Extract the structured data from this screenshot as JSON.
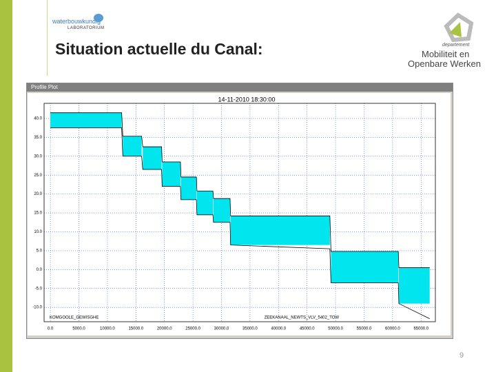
{
  "header": {
    "logo_top": "waterbouwkundig",
    "logo_bottom": "LABORATORIUM",
    "title": "Situation actuelle du Canal:",
    "dept_small": "departement",
    "dept_line1": "Mobiliteit en",
    "dept_line2": "Openbare Werken"
  },
  "window": {
    "title": "Profile Plot"
  },
  "chart_data": {
    "type": "line",
    "title": "14-11-2010 18:30:00",
    "annotations": [
      "KOMGOOLE_GEWISGHE",
      "ZEEKANAAL_NEWTS_VLV_5402_TOW"
    ],
    "x": [
      0,
      12500,
      12700,
      16000,
      16200,
      19500,
      19600,
      22800,
      22900,
      25600,
      25700,
      28500,
      28600,
      31500,
      31600,
      49000,
      49200,
      61000,
      61100,
      66500
    ],
    "series": [
      {
        "color": "#000000",
        "values": [
          41.5,
          41.5,
          35.3,
          35.3,
          32.5,
          32.5,
          28.5,
          28.5,
          24.5,
          24.5,
          20.8,
          20.8,
          18.8,
          18.8,
          14.2,
          14.2,
          4.8,
          4.8,
          0.5,
          0.5
        ]
      },
      {
        "color": "#000000",
        "values": [
          37.5,
          37.5,
          30,
          30,
          26.5,
          26.5,
          22,
          22,
          18.5,
          18.5,
          14.5,
          14.5,
          12.5,
          12.5,
          6.5,
          5.5,
          -3.5,
          -3.5,
          -9,
          -13
        ]
      }
    ],
    "fill_color": "#00e5ee",
    "grid_color": "#2a5fd8",
    "grid": true,
    "xlim": [
      -1100,
      67500
    ],
    "ylim": [
      -13.8,
      44
    ],
    "xticks": [
      {
        "value": 0,
        "label": "0.0"
      },
      {
        "value": 5000,
        "label": "5000.0"
      },
      {
        "value": 10000,
        "label": "10000.0"
      },
      {
        "value": 15000,
        "label": "15000.0"
      },
      {
        "value": 20000,
        "label": "20000.0"
      },
      {
        "value": 25000,
        "label": "25000.0"
      },
      {
        "value": 30000,
        "label": "30000.0"
      },
      {
        "value": 35000,
        "label": "35000.0"
      },
      {
        "value": 40000,
        "label": "40000.0"
      },
      {
        "value": 45000,
        "label": "45000.0"
      },
      {
        "value": 50000,
        "label": "50000.0"
      },
      {
        "value": 55000,
        "label": "55000.0"
      },
      {
        "value": 60000,
        "label": "60000.0"
      },
      {
        "value": 65000,
        "label": "65000.0"
      }
    ],
    "yticks": [
      {
        "value": -10,
        "label": "-10.0"
      },
      {
        "value": -5,
        "label": "-5.0"
      },
      {
        "value": 0,
        "label": "0.0"
      },
      {
        "value": 5,
        "label": "5.0"
      },
      {
        "value": 10,
        "label": "10.0"
      },
      {
        "value": 15,
        "label": "15.0"
      },
      {
        "value": 20,
        "label": "20.0"
      },
      {
        "value": 25,
        "label": "25.0"
      },
      {
        "value": 30,
        "label": "30.0"
      },
      {
        "value": 35,
        "label": "35.0"
      },
      {
        "value": 40,
        "label": "40.0"
      }
    ]
  },
  "footer": {
    "page": "9"
  }
}
